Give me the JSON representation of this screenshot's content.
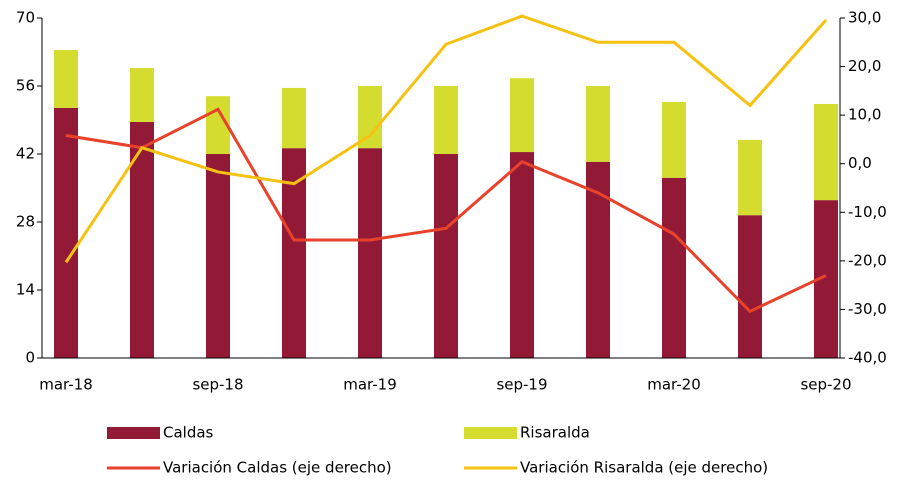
{
  "chart_data": {
    "type": "bar-line",
    "categories": [
      "mar-18",
      null,
      "sep-18",
      null,
      "mar-19",
      null,
      "sep-19",
      null,
      "mar-20",
      null,
      "sep-20"
    ],
    "series": [
      {
        "name": "Caldas",
        "type": "bar",
        "color": "#931a37",
        "values": [
          51.5,
          48.6,
          42,
          43.2,
          43.2,
          42,
          42.4,
          40.4,
          37.1,
          29.4,
          32.5
        ]
      },
      {
        "name": "Risaralda",
        "type": "bar",
        "color": "#d4dc2f",
        "values": [
          11.9,
          11.1,
          11.9,
          12.4,
          12.8,
          14,
          15.2,
          15.6,
          15.6,
          15.5,
          19.8
        ]
      },
      {
        "name": "Variación Caldas (eje derecho)",
        "type": "line",
        "axis": "y2",
        "color": "#e8432a",
        "values": [
          5.8,
          3.3,
          11.2,
          -15.7,
          -15.7,
          -13.3,
          0.4,
          -6.0,
          -14.5,
          -30.4,
          -23.0
        ]
      },
      {
        "name": "Variación Risaralda (eje derecho)",
        "type": "line",
        "axis": "y2",
        "color": "#f5c211",
        "values": [
          -20.3,
          3.3,
          -1.7,
          -4.1,
          5.8,
          24.6,
          30.4,
          25,
          25,
          12,
          29.6
        ]
      }
    ],
    "ylim": [
      0,
      70
    ],
    "yticks": [
      0,
      14,
      28,
      42,
      56,
      70
    ],
    "y2lim": [
      -40,
      30
    ],
    "y2ticks": [
      {
        "value": -40,
        "label": "-40,0"
      },
      {
        "value": -30,
        "label": "-30,0"
      },
      {
        "value": -20,
        "label": "-20,0"
      },
      {
        "value": -10,
        "label": "-10,0"
      },
      {
        "value": 0,
        "label": "0,0"
      },
      {
        "value": 10,
        "label": "10,0"
      },
      {
        "value": 20,
        "label": "20,0"
      },
      {
        "value": 30,
        "label": "30,0"
      }
    ]
  }
}
